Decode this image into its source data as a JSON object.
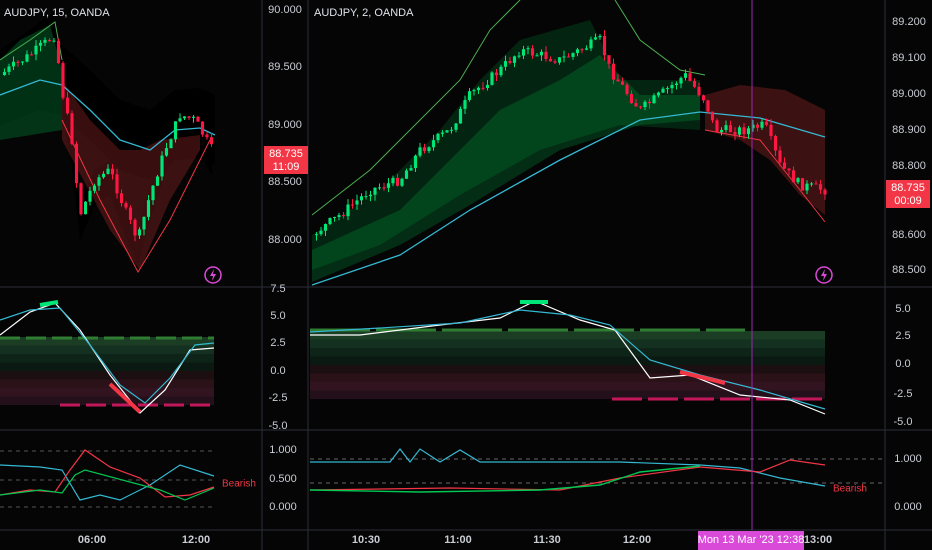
{
  "left_chart": {
    "title": "AUDJPY, 15, OANDA",
    "price_axis": [
      "90.000",
      "89.500",
      "89.000",
      "88.500",
      "88.000"
    ],
    "price_tag": "88.735",
    "countdown": "11:09",
    "oscillator_axis": [
      "7.5",
      "5.0",
      "2.5",
      "0.0",
      "-2.5",
      "-5.0"
    ],
    "signal_axis": [
      "1.000",
      "0.500",
      "0.000"
    ],
    "signal_label": "Bearish",
    "time_labels": [
      "06:00",
      "12:00"
    ]
  },
  "right_chart": {
    "title": "AUDJPY, 2, OANDA",
    "price_axis": [
      "89.200",
      "89.100",
      "89.000",
      "88.900",
      "88.800",
      "88.600",
      "88.500"
    ],
    "price_tag": "88.735",
    "countdown": "00:09",
    "oscillator_axis": [
      "5.0",
      "2.5",
      "0.0",
      "-2.5",
      "-5.0"
    ],
    "signal_axis": [
      "1.000",
      "0.000"
    ],
    "signal_label": "Bearish",
    "time_labels": [
      "10:30",
      "11:00",
      "11:30",
      "12:00",
      "13:00"
    ],
    "crosshair_time": "Mon 13 Mar '23   12:38"
  }
}
